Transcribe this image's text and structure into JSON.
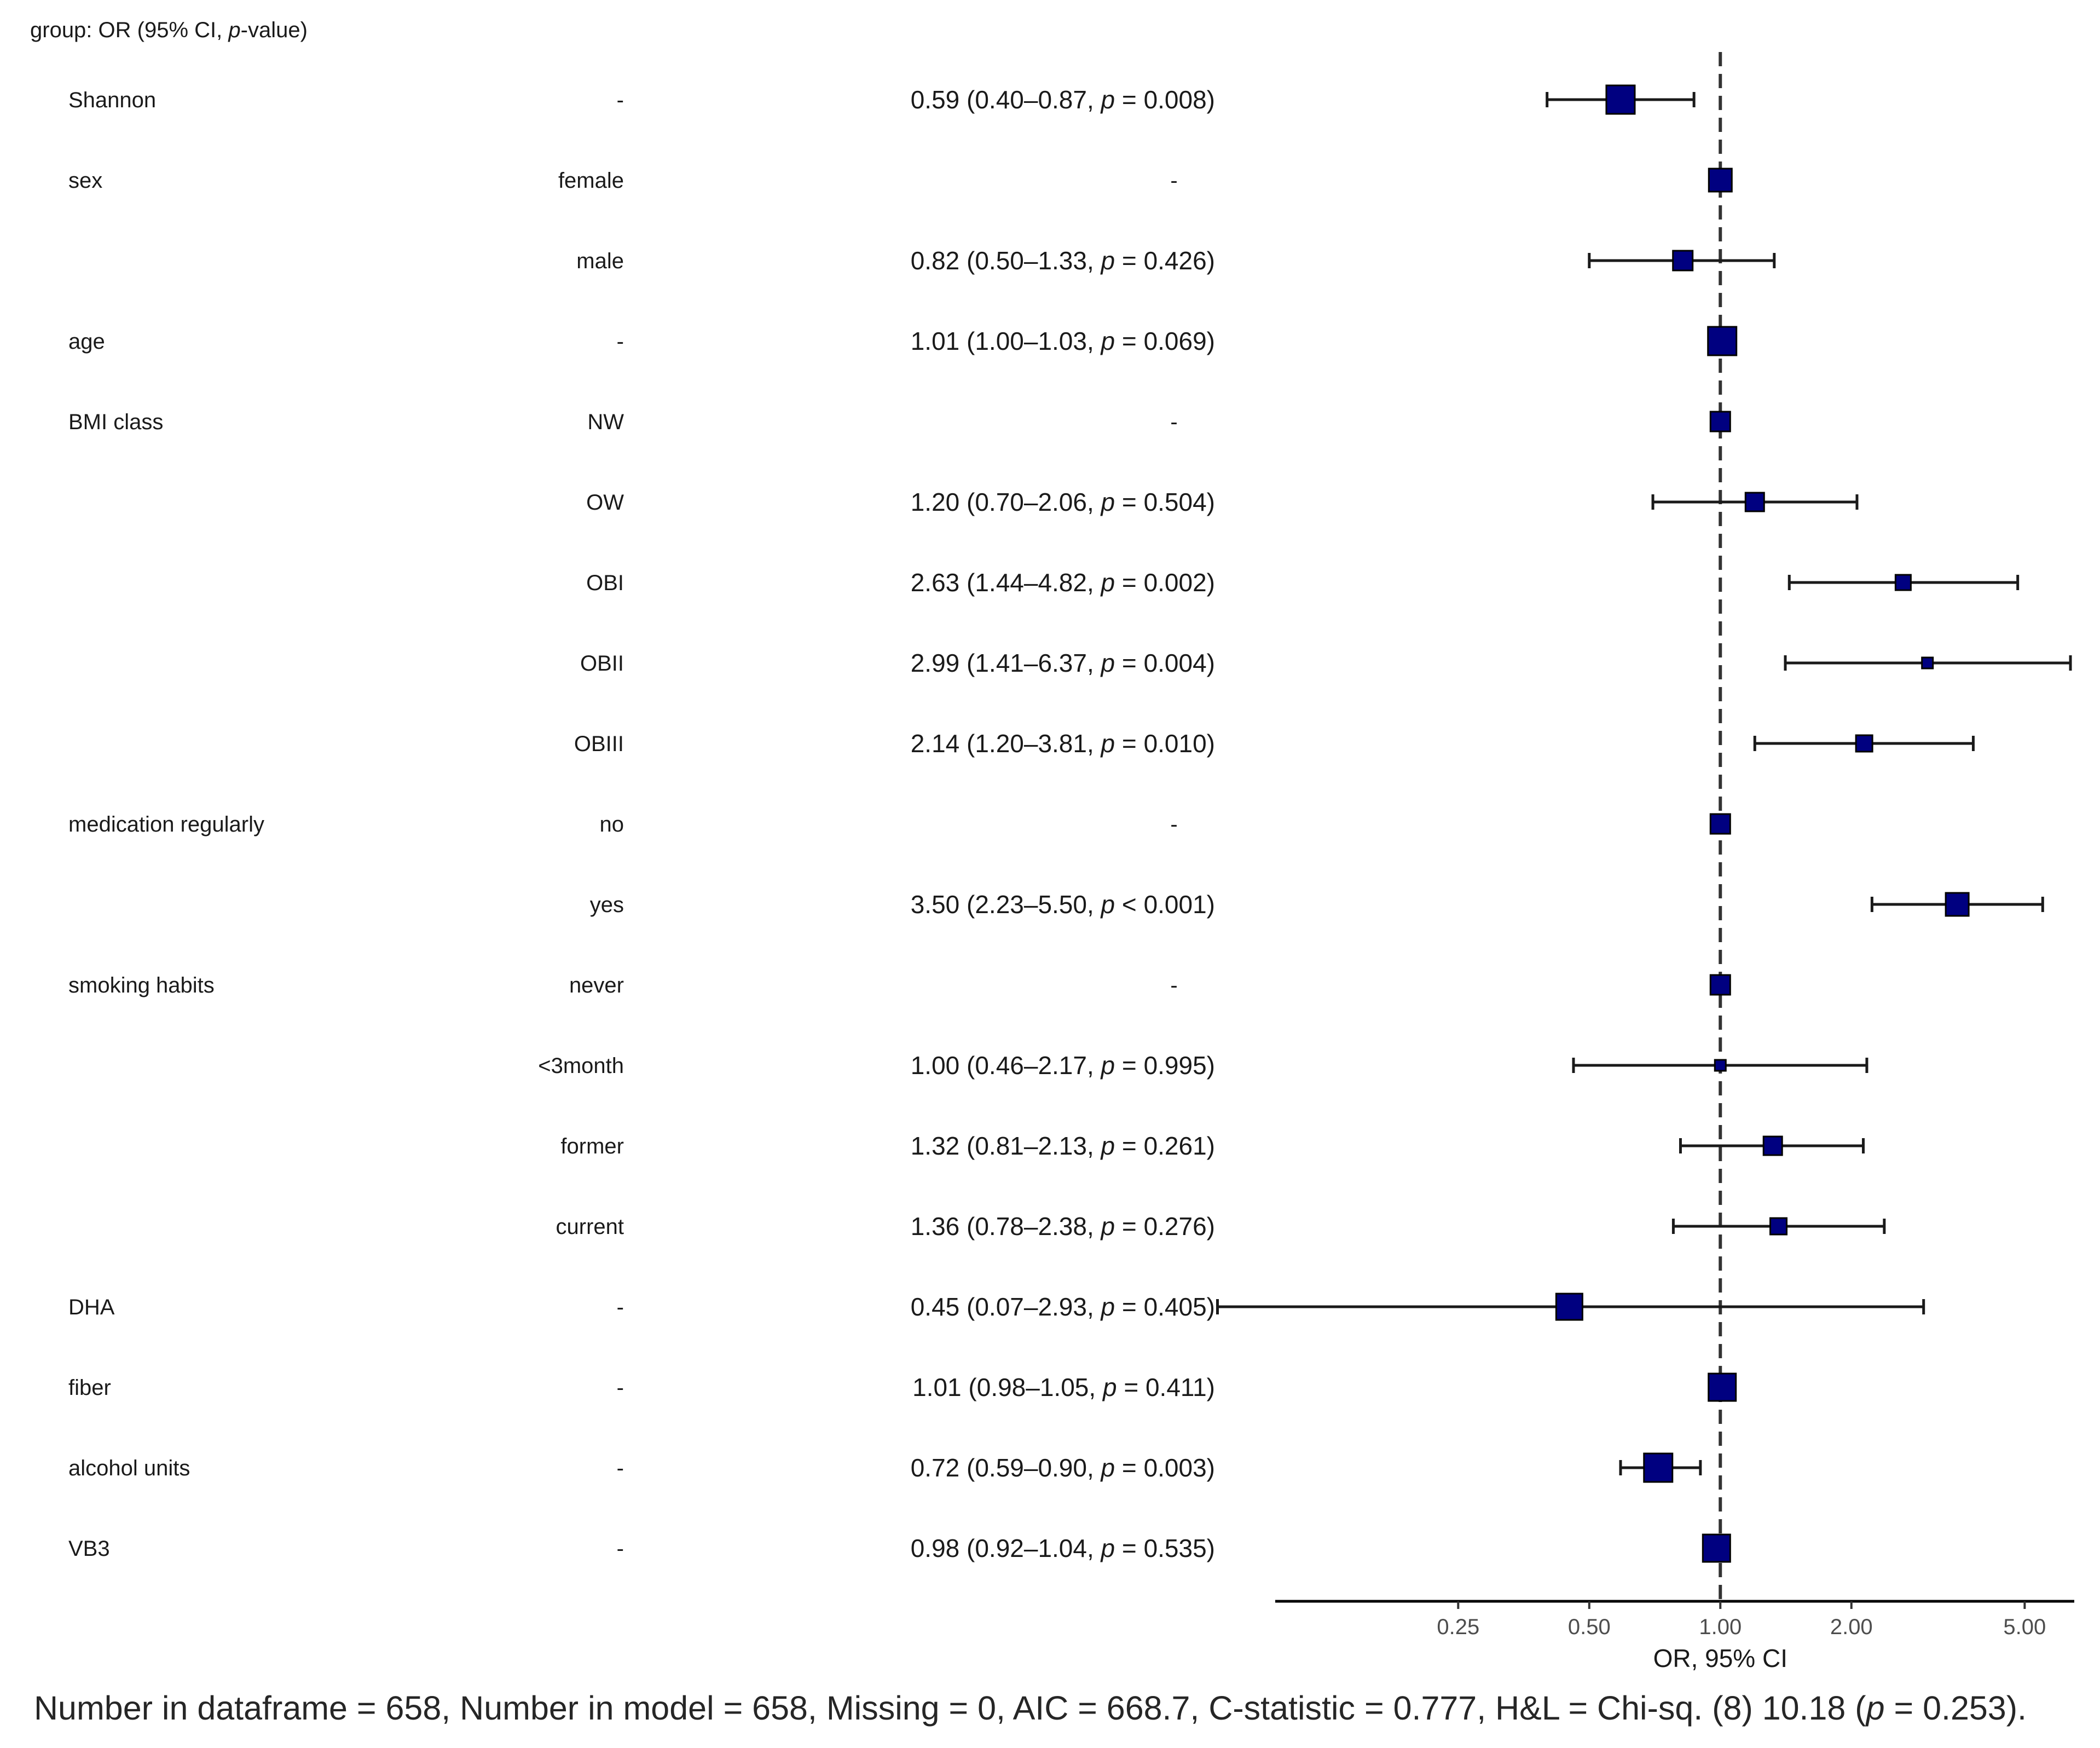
{
  "chart_data": {
    "type": "forest",
    "title": "group: OR (95% CI, p-value)",
    "xlabel": "OR, 95% CI",
    "x_scale": "log",
    "xlim": [
      0.095,
      6.5
    ],
    "x_ticks": [
      0.25,
      0.5,
      1.0,
      2.0,
      5.0
    ],
    "x_tick_labels": [
      "0.25",
      "0.50",
      "1.00",
      "2.00",
      "5.00"
    ],
    "reference_line": 1.0,
    "rows": [
      {
        "variable": "Shannon",
        "level": "-",
        "label": "0.59 (0.40–0.87, p = 0.008)",
        "or": 0.59,
        "lo": 0.4,
        "hi": 0.87,
        "weight": 1.0
      },
      {
        "variable": "sex",
        "level": "female",
        "label": "-",
        "or": 1.0,
        "lo": null,
        "hi": null,
        "weight": 0.75
      },
      {
        "variable": "",
        "level": "male",
        "label": "0.82 (0.50–1.33, p = 0.426)",
        "or": 0.82,
        "lo": 0.5,
        "hi": 1.33,
        "weight": 0.6
      },
      {
        "variable": "age",
        "level": "-",
        "label": "1.01 (1.00–1.03, p = 0.069)",
        "or": 1.01,
        "lo": 1.0,
        "hi": 1.03,
        "weight": 1.0
      },
      {
        "variable": "BMI  class",
        "level": "NW",
        "label": "-",
        "or": 1.0,
        "lo": null,
        "hi": null,
        "weight": 0.6
      },
      {
        "variable": "",
        "level": "OW",
        "label": "1.20 (0.70–2.06, p = 0.504)",
        "or": 1.2,
        "lo": 0.7,
        "hi": 2.06,
        "weight": 0.55
      },
      {
        "variable": "",
        "level": "OBI",
        "label": "2.63 (1.44–4.82, p = 0.002)",
        "or": 2.63,
        "lo": 1.44,
        "hi": 4.82,
        "weight": 0.4
      },
      {
        "variable": "",
        "level": "OBII",
        "label": "2.99 (1.41–6.37, p = 0.004)",
        "or": 2.99,
        "lo": 1.41,
        "hi": 6.37,
        "weight": 0.2
      },
      {
        "variable": "",
        "level": "OBIII",
        "label": "2.14 (1.20–3.81, p = 0.010)",
        "or": 2.14,
        "lo": 1.2,
        "hi": 3.81,
        "weight": 0.45
      },
      {
        "variable": "medication  regularly",
        "level": "no",
        "label": "-",
        "or": 1.0,
        "lo": null,
        "hi": null,
        "weight": 0.6
      },
      {
        "variable": "",
        "level": "yes",
        "label": "3.50 (2.23–5.50, p < 0.001)",
        "or": 3.5,
        "lo": 2.23,
        "hi": 5.5,
        "weight": 0.75
      },
      {
        "variable": "smoking  habits",
        "level": "never",
        "label": "-",
        "or": 1.0,
        "lo": null,
        "hi": null,
        "weight": 0.6
      },
      {
        "variable": "",
        "level": "<3month",
        "label": "1.00 (0.46–2.17, p = 0.995)",
        "or": 1.0,
        "lo": 0.46,
        "hi": 2.17,
        "weight": 0.2
      },
      {
        "variable": "",
        "level": "former",
        "label": "1.32 (0.81–2.13, p = 0.261)",
        "or": 1.32,
        "lo": 0.81,
        "hi": 2.13,
        "weight": 0.55
      },
      {
        "variable": "",
        "level": "current",
        "label": "1.36 (0.78–2.38, p = 0.276)",
        "or": 1.36,
        "lo": 0.78,
        "hi": 2.38,
        "weight": 0.45
      },
      {
        "variable": "DHA",
        "level": "-",
        "label": "0.45 (0.07–2.93, p = 0.405)",
        "or": 0.45,
        "lo": 0.07,
        "hi": 2.93,
        "weight": 0.9
      },
      {
        "variable": "fiber",
        "level": "-",
        "label": "1.01 (0.98–1.05, p = 0.411)",
        "or": 1.01,
        "lo": 0.98,
        "hi": 1.05,
        "weight": 0.95
      },
      {
        "variable": "alcohol  units",
        "level": "-",
        "label": "0.72 (0.59–0.90, p = 0.003)",
        "or": 0.72,
        "lo": 0.59,
        "hi": 0.9,
        "weight": 1.0
      },
      {
        "variable": "VB3",
        "level": "-",
        "label": "0.98 (0.92–1.04, p = 0.535)",
        "or": 0.98,
        "lo": 0.92,
        "hi": 1.04,
        "weight": 0.95
      }
    ]
  },
  "colors": {
    "marker": "#000080",
    "marker_edge": "#000000",
    "line": "#1a1a1a",
    "refline": "#333333"
  },
  "footer": {
    "part1": "Number in dataframe = 658, Number in model = 658, Missing = 0, AIC = 668.7, C-statistic = 0.777, H&L = Chi-sq. (8) 10.18 (",
    "p": "p",
    "part2": " = 0.253)."
  }
}
